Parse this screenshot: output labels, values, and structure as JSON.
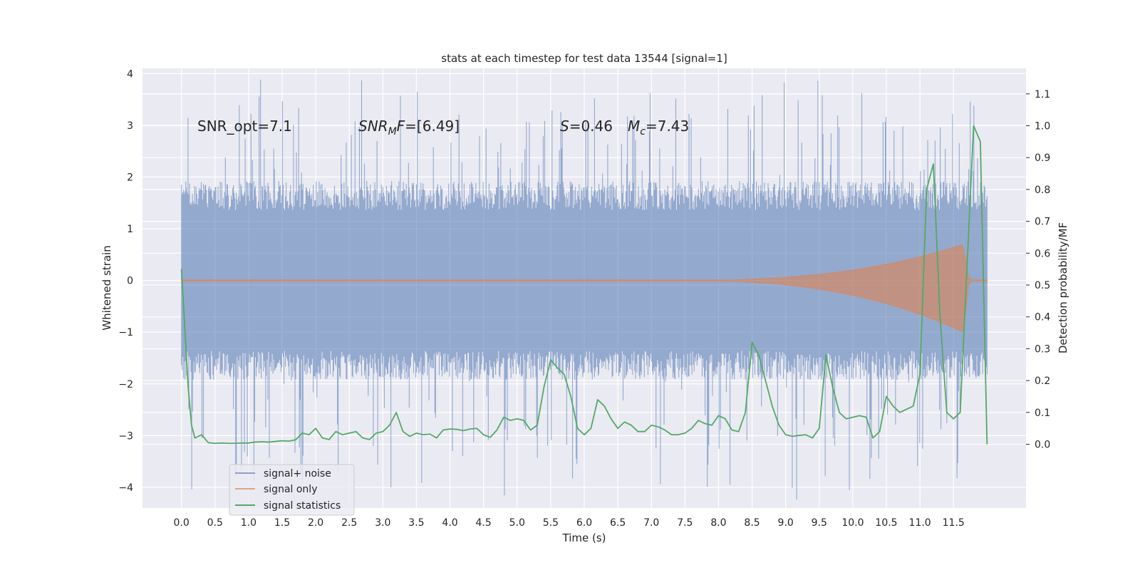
{
  "chart_data": {
    "type": "line",
    "title": "stats at each timestep for test data 13544 [signal=1]",
    "xlabel": "Time (s)",
    "ylabel": "Whitened strain",
    "ylabel_right": "Detection probability/MF",
    "xlim": [
      -0.58,
      12.58
    ],
    "ylim": [
      -4.4,
      4.1
    ],
    "ylim_right": [
      -0.2,
      1.18
    ],
    "x_ticks": [
      "0.0",
      "0.5",
      "1.0",
      "1.5",
      "2.0",
      "2.5",
      "3.0",
      "3.5",
      "4.0",
      "4.5",
      "5.0",
      "5.5",
      "6.0",
      "6.5",
      "7.0",
      "7.5",
      "8.0",
      "8.5",
      "9.0",
      "9.5",
      "10.0",
      "10.5",
      "11.0",
      "11.5"
    ],
    "y_ticks": [
      "4",
      "3",
      "2",
      "1",
      "0",
      "−1",
      "−2",
      "−3",
      "−4"
    ],
    "y_ticks_right": [
      "1.1",
      "1.0",
      "0.9",
      "0.8",
      "0.7",
      "0.6",
      "0.5",
      "0.4",
      "0.3",
      "0.2",
      "0.1",
      "0.0"
    ],
    "grid": true,
    "legend_position": "lower-left",
    "annotations": [
      {
        "text": "SNR_opt=7.1",
        "x": 0.2,
        "y": 2.9
      },
      {
        "prefix_italic": "SNR",
        "sub": "M",
        "mid_italic": "F",
        "text": "=[6.49]",
        "x": 2.6,
        "y": 2.9
      },
      {
        "prefix_italic": "S",
        "text": "=0.46",
        "x": 5.6,
        "y": 2.9
      },
      {
        "prefix_italic": "M",
        "sub": "c",
        "text": "=7.43",
        "x": 6.6,
        "y": 2.9
      }
    ],
    "series": [
      {
        "name": "signal+ noise",
        "color": "#4c72b0",
        "axis": "left",
        "kind": "noise-band",
        "x_range": [
          0.0,
          12.0
        ],
        "typical_amplitude": 1.6,
        "max_positive": 3.7,
        "max_negative": -4.1
      },
      {
        "name": "signal only",
        "color": "#dd8452",
        "axis": "left",
        "kind": "chirp",
        "x_range": [
          0.0,
          12.0
        ],
        "chirp_start": 7.3,
        "peak_time": 11.65,
        "peak_amplitude": 0.7,
        "min_amplitude": -1.0
      },
      {
        "name": "signal statistics",
        "color": "#55a868",
        "axis": "right",
        "x": [
          0.0,
          0.1,
          0.15,
          0.2,
          0.3,
          0.4,
          0.5,
          0.6,
          0.7,
          0.8,
          0.9,
          1.0,
          1.1,
          1.2,
          1.3,
          1.4,
          1.5,
          1.6,
          1.7,
          1.8,
          1.9,
          2.0,
          2.1,
          2.2,
          2.3,
          2.4,
          2.5,
          2.6,
          2.7,
          2.8,
          2.9,
          3.0,
          3.1,
          3.2,
          3.3,
          3.4,
          3.5,
          3.6,
          3.7,
          3.8,
          3.9,
          4.0,
          4.1,
          4.2,
          4.3,
          4.4,
          4.5,
          4.6,
          4.7,
          4.8,
          4.9,
          5.0,
          5.1,
          5.2,
          5.3,
          5.4,
          5.5,
          5.6,
          5.7,
          5.8,
          5.9,
          6.0,
          6.1,
          6.2,
          6.3,
          6.4,
          6.5,
          6.6,
          6.7,
          6.8,
          6.9,
          7.0,
          7.1,
          7.2,
          7.3,
          7.4,
          7.5,
          7.6,
          7.7,
          7.8,
          7.9,
          8.0,
          8.1,
          8.2,
          8.3,
          8.4,
          8.5,
          8.6,
          8.7,
          8.8,
          8.9,
          9.0,
          9.1,
          9.2,
          9.3,
          9.4,
          9.5,
          9.6,
          9.7,
          9.8,
          9.9,
          10.0,
          10.1,
          10.2,
          10.3,
          10.4,
          10.5,
          10.6,
          10.7,
          10.8,
          10.9,
          11.0,
          11.1,
          11.2,
          11.3,
          11.4,
          11.5,
          11.6,
          11.7,
          11.8,
          11.9,
          12.0
        ],
        "y": [
          0.55,
          0.18,
          0.06,
          0.02,
          0.03,
          0.005,
          0.003,
          0.004,
          0.003,
          0.003,
          0.004,
          0.004,
          0.007,
          0.008,
          0.007,
          0.009,
          0.011,
          0.01,
          0.014,
          0.035,
          0.03,
          0.05,
          0.02,
          0.015,
          0.04,
          0.03,
          0.035,
          0.04,
          0.02,
          0.015,
          0.035,
          0.04,
          0.06,
          0.1,
          0.04,
          0.025,
          0.035,
          0.03,
          0.032,
          0.02,
          0.045,
          0.048,
          0.047,
          0.043,
          0.048,
          0.05,
          0.03,
          0.022,
          0.045,
          0.085,
          0.075,
          0.08,
          0.075,
          0.045,
          0.06,
          0.18,
          0.265,
          0.24,
          0.22,
          0.15,
          0.05,
          0.03,
          0.05,
          0.14,
          0.12,
          0.08,
          0.05,
          0.07,
          0.06,
          0.04,
          0.04,
          0.06,
          0.055,
          0.045,
          0.03,
          0.03,
          0.035,
          0.05,
          0.075,
          0.065,
          0.06,
          0.09,
          0.08,
          0.045,
          0.04,
          0.1,
          0.32,
          0.28,
          0.2,
          0.12,
          0.06,
          0.03,
          0.025,
          0.028,
          0.03,
          0.02,
          0.05,
          0.28,
          0.18,
          0.1,
          0.08,
          0.085,
          0.09,
          0.085,
          0.02,
          0.04,
          0.15,
          0.12,
          0.1,
          0.11,
          0.12,
          0.22,
          0.8,
          0.88,
          0.4,
          0.1,
          0.08,
          0.1,
          0.55,
          1.0,
          0.95,
          0.0
        ]
      }
    ]
  }
}
